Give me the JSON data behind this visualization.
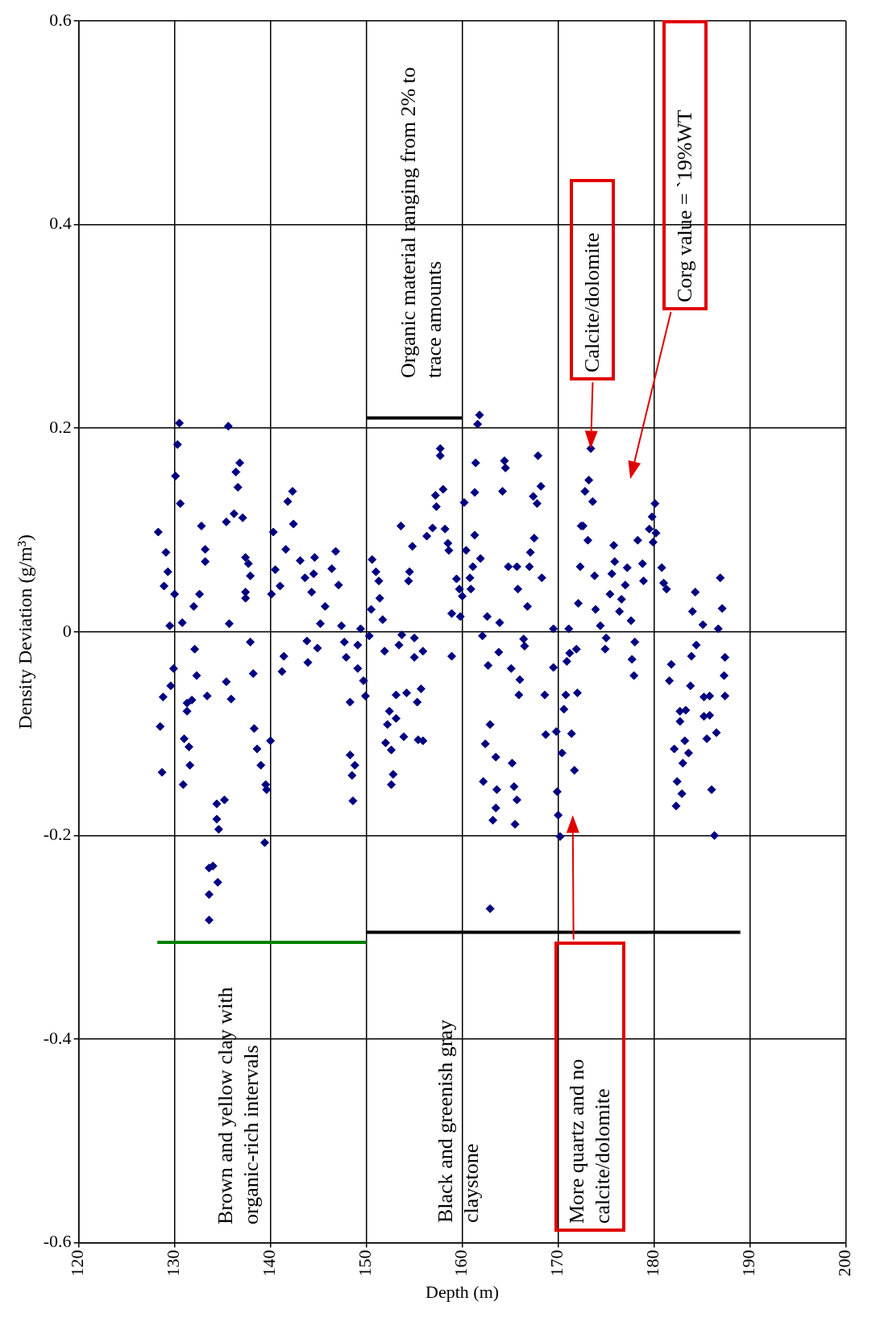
{
  "chart_data": {
    "type": "scatter",
    "xlabel": "Depth (m)",
    "ylabel": "Density Deviation (g/m³)",
    "xlim": [
      120,
      200
    ],
    "xticks": [
      120,
      130,
      140,
      150,
      160,
      170,
      180,
      190,
      200
    ],
    "ylim": [
      -0.6,
      0.6
    ],
    "yticks": [
      -0.6,
      -0.4,
      -0.2,
      0,
      0.2,
      0.4,
      0.6
    ],
    "grid": true,
    "legend": false,
    "annotations": [
      "Brown and yellow clay with organic-rich intervals",
      "Organic material ranging from 2% to trace amounts",
      "Black and greenish gray claystone",
      "Calcite/dolomite",
      "Corg value = `19%WT",
      "More quartz and no calcite/dolomite"
    ],
    "series": [
      {
        "color": "#000080",
        "marker": "diamond",
        "x": [
          130.5,
          135.6,
          130.3,
          130.1,
          136.8,
          136.4,
          136.6,
          130.6,
          142.3,
          141.8,
          142.4,
          137.1,
          136.2,
          135.4,
          132.8,
          128.3,
          140.3,
          141.6,
          129.1,
          133.2,
          133.2,
          137.4,
          137.7,
          137.9,
          129.3,
          128.9,
          130,
          132.6,
          132,
          137.4,
          137.4,
          135.7,
          130.8,
          129.5,
          143.1,
          144.6,
          146.8,
          146.4,
          143.6,
          144.5,
          147.1,
          144.3,
          140.5,
          141,
          140.1,
          145.7,
          145.2,
          147.4,
          149.4,
          150.3,
          137.9,
          132.1,
          143.8,
          144.9,
          143.9,
          147.7,
          149.1,
          147.9,
          149.1,
          149.7,
          149.9,
          141.4,
          141.2,
          129.9,
          129.6,
          128.8,
          132.3,
          138.2,
          133.4,
          131.3,
          131.8,
          131.3,
          135.4,
          135.9,
          148.3,
          128.5,
          131,
          131.5,
          131.6,
          128.7,
          130.9,
          138.3,
          138.6,
          139,
          139.5,
          139.6,
          140,
          148.3,
          148.8,
          148.5,
          148.6,
          134.4,
          135.2,
          134.4,
          134.6,
          133.6,
          134,
          133.6,
          134.5,
          133.6,
          139.4,
          162.9,
          161.8,
          161.6,
          157.7,
          157.7,
          161.4,
          164.4,
          164.5,
          167.9,
          158,
          157.2,
          157.3,
          161.3,
          164.2,
          160.2,
          168.2,
          167.4,
          167.8,
          153.6,
          156.9,
          156.3,
          158.2,
          158.5,
          158.6,
          154.8,
          160.4,
          161.3,
          161.9,
          161.1,
          167.5,
          167.1,
          167,
          168.3,
          150.6,
          151,
          151.3,
          154.5,
          154.4,
          159.4,
          159.7,
          160,
          160.8,
          160.9,
          164.8,
          165.7,
          165.8,
          151.4,
          150.5,
          151.7,
          158.9,
          159.8,
          162.6,
          163.9,
          166.8,
          169.5,
          171.1,
          172.1,
          172.3,
          172.4,
          153.7,
          155,
          153.4,
          151.9,
          155,
          155.9,
          158.9,
          162.1,
          163.8,
          162.7,
          166.4,
          166.5,
          165.1,
          166,
          165.9,
          169.5,
          171.2,
          171.9,
          170.9,
          168.6,
          170.8,
          172,
          170.6,
          153.1,
          154.2,
          155.7,
          155.3,
          152.4,
          153.1,
          152.2,
          153.9,
          152,
          152.6,
          155.4,
          155.9,
          152.8,
          152.6,
          162.9,
          162.4,
          163.5,
          165.2,
          162.2,
          163.6,
          165.4,
          165.7,
          163.5,
          163.2,
          165.5,
          168.7,
          169.8,
          171.4,
          170.4,
          171.7,
          169.9,
          170,
          170.2,
          173.4,
          173.2,
          172.8,
          173.6,
          180.1,
          179.8,
          180.2,
          179.9,
          179.5,
          178.3,
          175.8,
          172.6,
          173.1,
          175.9,
          175.6,
          177.2,
          178.8,
          178.9,
          180.8,
          181,
          181.3,
          173.8,
          175.4,
          177,
          176.6,
          176.4,
          177.6,
          173.9,
          174.4,
          175,
          174.9,
          178,
          177.7,
          177.9,
          186.9,
          187.1,
          186.7,
          184.3,
          184,
          185.1,
          184.4,
          183.9,
          187.4,
          187.3,
          187.4,
          181.8,
          181.6,
          183.8,
          185.2,
          185.8,
          182.7,
          183.3,
          182.7,
          185.2,
          185.8,
          185.5,
          186.5,
          182.1,
          183.2,
          183.6,
          183,
          182.4,
          182.9,
          182.3,
          186,
          186.3
        ],
        "values": [
          0.205,
          0.202,
          0.184,
          0.153,
          0.166,
          0.157,
          0.142,
          0.126,
          0.138,
          0.128,
          0.106,
          0.112,
          0.116,
          0.108,
          0.104,
          0.098,
          0.098,
          0.081,
          0.078,
          0.081,
          0.069,
          0.073,
          0.067,
          0.055,
          0.059,
          0.045,
          0.037,
          0.037,
          0.025,
          0.039,
          0.033,
          0.008,
          0.009,
          0.006,
          0.07,
          0.073,
          0.079,
          0.062,
          0.053,
          0.057,
          0.046,
          0.039,
          0.061,
          0.045,
          0.037,
          0.025,
          0.008,
          0.006,
          0.003,
          -0.004,
          -0.01,
          -0.017,
          -0.009,
          -0.016,
          -0.03,
          -0.01,
          -0.013,
          -0.025,
          -0.036,
          -0.048,
          -0.063,
          -0.024,
          -0.039,
          -0.036,
          -0.053,
          -0.064,
          -0.043,
          -0.041,
          -0.063,
          -0.07,
          -0.067,
          -0.078,
          -0.049,
          -0.066,
          -0.069,
          -0.093,
          -0.105,
          -0.113,
          -0.131,
          -0.138,
          -0.15,
          -0.095,
          -0.115,
          -0.131,
          -0.15,
          -0.155,
          -0.107,
          -0.121,
          -0.131,
          -0.141,
          -0.166,
          -0.169,
          -0.165,
          -0.184,
          -0.194,
          -0.232,
          -0.23,
          -0.258,
          -0.246,
          -0.283,
          -0.207,
          -0.272,
          0.213,
          0.204,
          0.18,
          0.173,
          0.166,
          0.168,
          0.161,
          0.173,
          0.14,
          0.134,
          0.123,
          0.137,
          0.138,
          0.127,
          0.143,
          0.133,
          0.126,
          0.104,
          0.102,
          0.094,
          0.101,
          0.087,
          0.08,
          0.084,
          0.08,
          0.095,
          0.072,
          0.064,
          0.092,
          0.078,
          0.064,
          0.053,
          0.071,
          0.059,
          0.05,
          0.059,
          0.05,
          0.052,
          0.042,
          0.035,
          0.053,
          0.042,
          0.064,
          0.064,
          0.042,
          0.033,
          0.022,
          0.012,
          0.018,
          0.015,
          0.015,
          0.009,
          0.025,
          0.003,
          0.003,
          0.028,
          0.064,
          0.104,
          -0.003,
          -0.006,
          -0.013,
          -0.019,
          -0.025,
          -0.019,
          -0.024,
          -0.004,
          -0.02,
          -0.033,
          -0.007,
          -0.014,
          -0.036,
          -0.047,
          -0.062,
          -0.035,
          -0.021,
          -0.017,
          -0.029,
          -0.062,
          -0.062,
          -0.06,
          -0.076,
          -0.062,
          -0.06,
          -0.056,
          -0.069,
          -0.078,
          -0.085,
          -0.091,
          -0.103,
          -0.109,
          -0.116,
          -0.106,
          -0.107,
          -0.14,
          -0.15,
          -0.091,
          -0.11,
          -0.123,
          -0.129,
          -0.147,
          -0.155,
          -0.152,
          -0.165,
          -0.173,
          -0.185,
          -0.189,
          -0.101,
          -0.098,
          -0.1,
          -0.119,
          -0.136,
          -0.157,
          -0.18,
          -0.201,
          0.18,
          0.149,
          0.138,
          0.128,
          0.126,
          0.113,
          0.097,
          0.088,
          0.101,
          0.09,
          0.085,
          0.104,
          0.09,
          0.069,
          0.057,
          0.063,
          0.067,
          0.05,
          0.063,
          0.048,
          0.042,
          0.055,
          0.037,
          0.046,
          0.032,
          0.02,
          0.011,
          0.022,
          0.006,
          -0.006,
          -0.017,
          -0.01,
          -0.027,
          -0.043,
          0.053,
          0.023,
          0.003,
          0.039,
          0.02,
          0.007,
          -0.013,
          -0.024,
          -0.025,
          -0.043,
          -0.063,
          -0.032,
          -0.048,
          -0.053,
          -0.064,
          -0.063,
          -0.078,
          -0.077,
          -0.088,
          -0.083,
          -0.082,
          -0.105,
          -0.099,
          -0.115,
          -0.107,
          -0.119,
          -0.129,
          -0.147,
          -0.159,
          -0.171,
          -0.155,
          -0.2
        ]
      },
      {
        "type": "line",
        "color": "#008000",
        "marker": "none",
        "x": [
          128.2,
          150
        ],
        "values": [
          -0.305,
          -0.305
        ]
      },
      {
        "type": "line",
        "color": "#000000",
        "marker": "none",
        "x": [
          150,
          189
        ],
        "values": [
          -0.295,
          -0.295
        ]
      },
      {
        "type": "line",
        "color": "#000000",
        "marker": "none",
        "x": [
          150,
          160
        ],
        "values": [
          0.21,
          0.21
        ]
      }
    ]
  }
}
